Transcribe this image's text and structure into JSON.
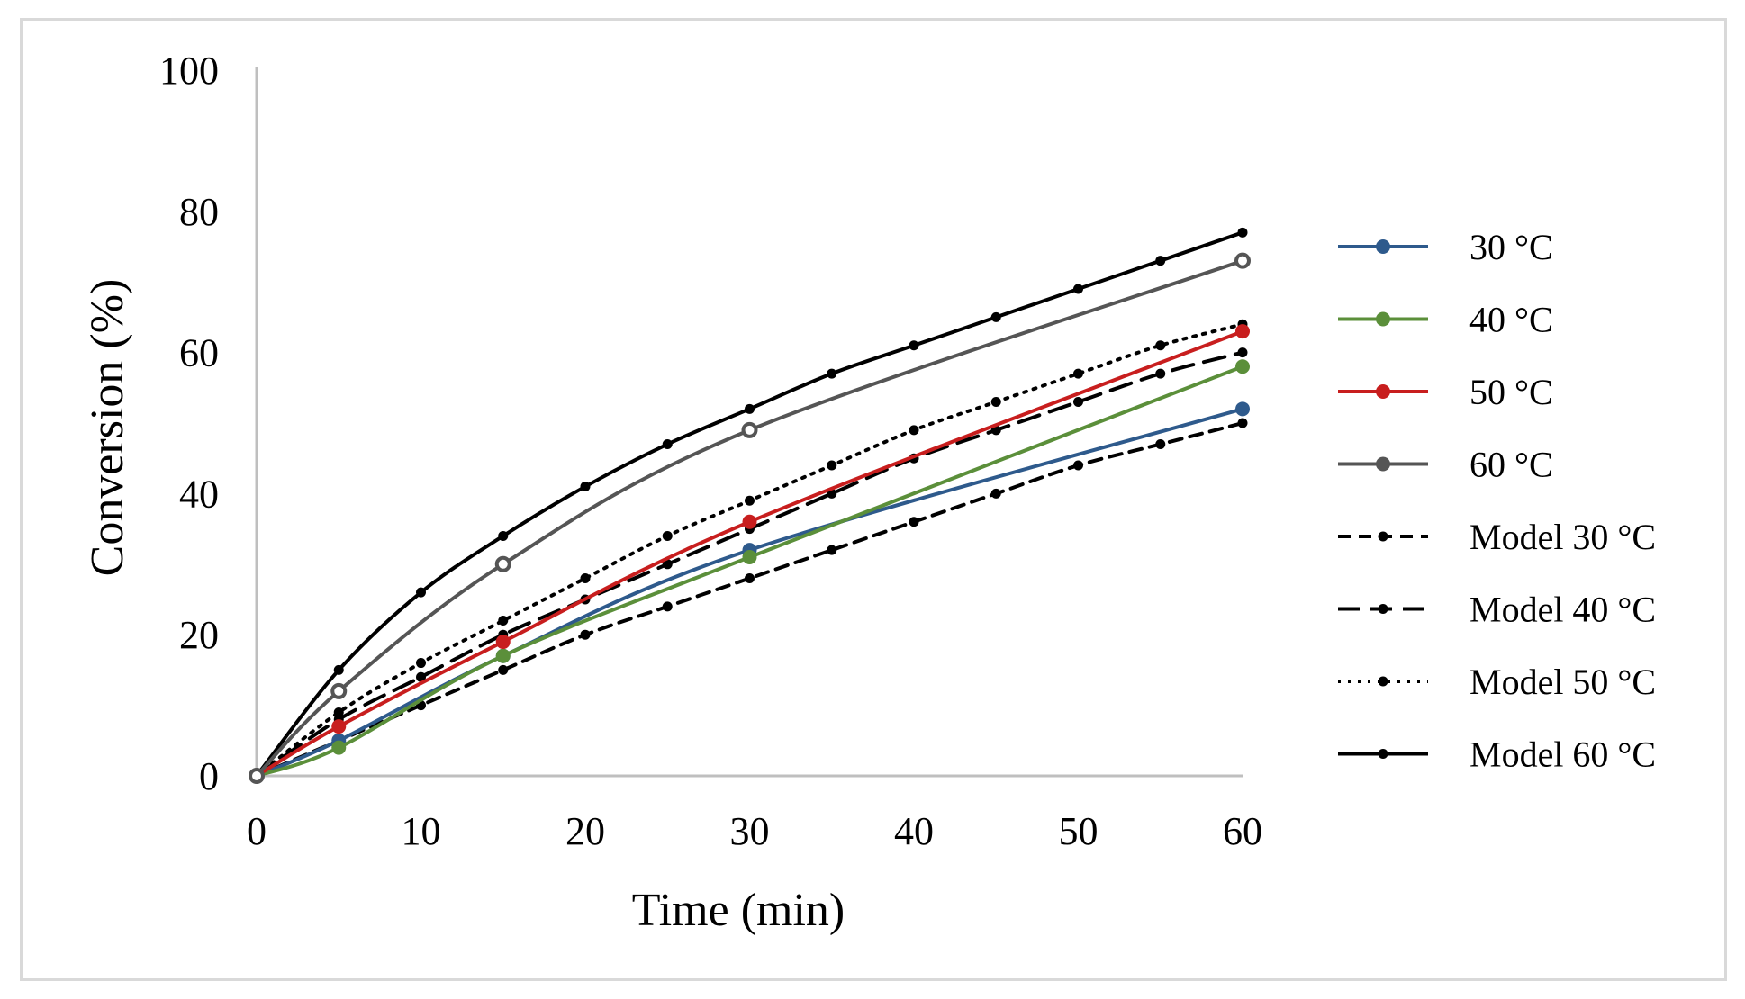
{
  "chart_data": {
    "type": "line",
    "title": "",
    "xlabel": "Time (min)",
    "ylabel": "Conversion (%)",
    "xlim": [
      0,
      60
    ],
    "ylim": [
      0,
      100
    ],
    "xticks": [
      0,
      10,
      20,
      30,
      40,
      50,
      60
    ],
    "yticks": [
      0,
      20,
      40,
      60,
      80,
      100
    ],
    "grid": false,
    "legend_position": "right",
    "series": [
      {
        "name": "30 °C",
        "color": "#2e5a8c",
        "style": "solid-marker",
        "x": [
          0,
          5,
          15,
          30,
          60
        ],
        "y": [
          0,
          5,
          17,
          32,
          52
        ]
      },
      {
        "name": "40 °C",
        "color": "#5b8f3a",
        "style": "solid-marker",
        "x": [
          0,
          5,
          15,
          30,
          60
        ],
        "y": [
          0,
          4,
          17,
          31,
          58
        ]
      },
      {
        "name": "50 °C",
        "color": "#c81e1e",
        "style": "solid-marker",
        "x": [
          0,
          5,
          15,
          30,
          60
        ],
        "y": [
          0,
          7,
          19,
          36,
          63
        ]
      },
      {
        "name": "60 °C",
        "color": "#555555",
        "style": "solid-hollow-marker",
        "x": [
          0,
          5,
          15,
          30,
          60
        ],
        "y": [
          0,
          12,
          30,
          49,
          73
        ]
      },
      {
        "name": "Model 30 °C",
        "color": "#000000",
        "style": "dashed",
        "x": [
          0,
          5,
          10,
          15,
          20,
          25,
          30,
          35,
          40,
          45,
          50,
          55,
          60
        ],
        "y": [
          0,
          5,
          10,
          15,
          20,
          24,
          28,
          32,
          36,
          40,
          44,
          47,
          50
        ]
      },
      {
        "name": "Model 40 °C",
        "color": "#000000",
        "style": "long-dashed",
        "x": [
          0,
          5,
          10,
          15,
          20,
          25,
          30,
          35,
          40,
          45,
          50,
          55,
          60
        ],
        "y": [
          0,
          8,
          14,
          20,
          25,
          30,
          35,
          40,
          45,
          49,
          53,
          57,
          60
        ]
      },
      {
        "name": "Model 50 °C",
        "color": "#000000",
        "style": "dotted",
        "x": [
          0,
          5,
          10,
          15,
          20,
          25,
          30,
          35,
          40,
          45,
          50,
          55,
          60
        ],
        "y": [
          0,
          9,
          16,
          22,
          28,
          34,
          39,
          44,
          49,
          53,
          57,
          61,
          64
        ]
      },
      {
        "name": "Model 60 °C",
        "color": "#000000",
        "style": "solid",
        "x": [
          0,
          5,
          10,
          15,
          20,
          25,
          30,
          35,
          40,
          45,
          50,
          55,
          60
        ],
        "y": [
          0,
          15,
          26,
          34,
          41,
          47,
          52,
          57,
          61,
          65,
          69,
          73,
          77
        ]
      }
    ]
  }
}
